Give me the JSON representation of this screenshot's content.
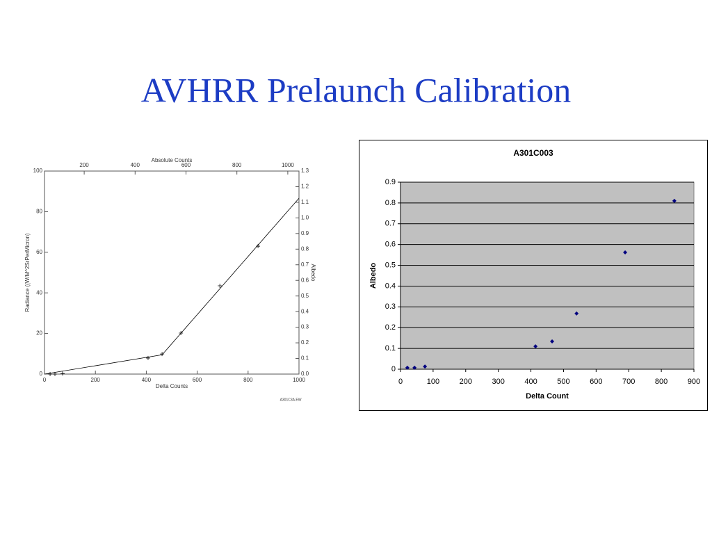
{
  "title": "AVHRR Prelaunch Calibration",
  "chart_data": [
    {
      "type": "line",
      "x_label": "Delta Counts",
      "y_label": "Radiance ((W/M^2SrPerMicron)",
      "x2_label": "Absolute Counts",
      "y2_label": "Albedo",
      "footnote": "A301C3A.EW",
      "xlim": [
        0,
        1000
      ],
      "xticks": [
        0,
        200,
        400,
        600,
        800,
        1000
      ],
      "ylim": [
        0,
        100
      ],
      "yticks": [
        0,
        20,
        40,
        60,
        80,
        100
      ],
      "x2lim": [
        44,
        1044
      ],
      "x2ticks": [
        200,
        400,
        600,
        800,
        1000
      ],
      "y2lim": [
        0,
        1.3
      ],
      "y2ticks": [
        {
          "value": 0,
          "label": "0.0"
        },
        0.1,
        0.2,
        0.3,
        0.4,
        0.5,
        0.6,
        0.7,
        0.8,
        0.9,
        {
          "value": 1,
          "label": "1.0"
        },
        1.1,
        1.2,
        1.3
      ],
      "color": "#000000",
      "marker": "plus",
      "series": [
        {
          "x": [
            22,
            41,
            71,
            407,
            462,
            536,
            689,
            839
          ],
          "values": [
            0,
            0,
            0.3,
            7.9,
            9.9,
            20.2,
            43.5,
            63
          ]
        }
      ],
      "fit": {
        "x": [
          0,
          462,
          1000
        ],
        "values": [
          0,
          9.5,
          86.6
        ]
      }
    },
    {
      "type": "scatter",
      "title": "A301C003",
      "x_label": "Delta Count",
      "y_label": "Albedo",
      "xlim": [
        0,
        900
      ],
      "xticks": [
        0,
        100,
        200,
        300,
        400,
        500,
        600,
        700,
        800,
        900
      ],
      "ylim": [
        0,
        0.9
      ],
      "yticks": [
        0,
        0.1,
        0.2,
        0.3,
        0.4,
        0.5,
        0.6,
        0.7,
        0.8,
        0.9
      ],
      "grid": true,
      "plot_background": "#c0c0c0",
      "series": [
        {
          "color": "#000080",
          "marker": "diamond",
          "x": [
            21,
            43,
            75,
            414,
            465,
            540,
            689,
            840
          ],
          "values": [
            0.007,
            0.007,
            0.013,
            0.11,
            0.134,
            0.268,
            0.562,
            0.81
          ]
        }
      ]
    }
  ]
}
